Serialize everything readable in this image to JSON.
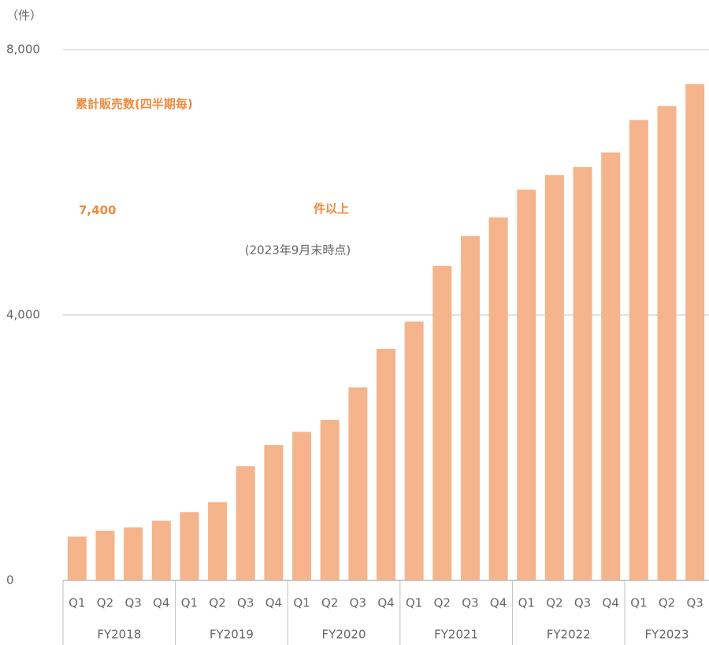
{
  "chart_data": {
    "type": "bar",
    "y_unit": "（件）",
    "color": "#f5b48b",
    "ylim": [
      0,
      8000
    ],
    "yticks": [
      0,
      {
        "value": 4000,
        "label": "4,000"
      },
      {
        "value": 8000,
        "label": "8,000"
      }
    ],
    "grid": true,
    "groups": [
      {
        "label": "FY2018",
        "categories": [
          "Q1",
          "Q2",
          "Q3",
          "Q4"
        ],
        "values": [
          660,
          750,
          800,
          900
        ]
      },
      {
        "label": "FY2019",
        "categories": [
          "Q1",
          "Q2",
          "Q3",
          "Q4"
        ],
        "values": [
          1030,
          1180,
          1720,
          2040
        ]
      },
      {
        "label": "FY2020",
        "categories": [
          "Q1",
          "Q2",
          "Q3",
          "Q4"
        ],
        "values": [
          2240,
          2420,
          2910,
          3490
        ]
      },
      {
        "label": "FY2021",
        "categories": [
          "Q1",
          "Q2",
          "Q3",
          "Q4"
        ],
        "values": [
          3900,
          4740,
          5190,
          5470
        ]
      },
      {
        "label": "FY2022",
        "categories": [
          "Q1",
          "Q2",
          "Q3",
          "Q4"
        ],
        "values": [
          5890,
          6110,
          6230,
          6450
        ]
      },
      {
        "label": "FY2023",
        "categories": [
          "Q1",
          "Q2",
          "Q3"
        ],
        "values": [
          6940,
          7150,
          7480
        ]
      }
    ],
    "annotations": {
      "headline": "累計販売数(四半期毎)",
      "figure": "7,400",
      "figure_unit": "件以上",
      "note": "(2023年9月末時点)"
    }
  }
}
